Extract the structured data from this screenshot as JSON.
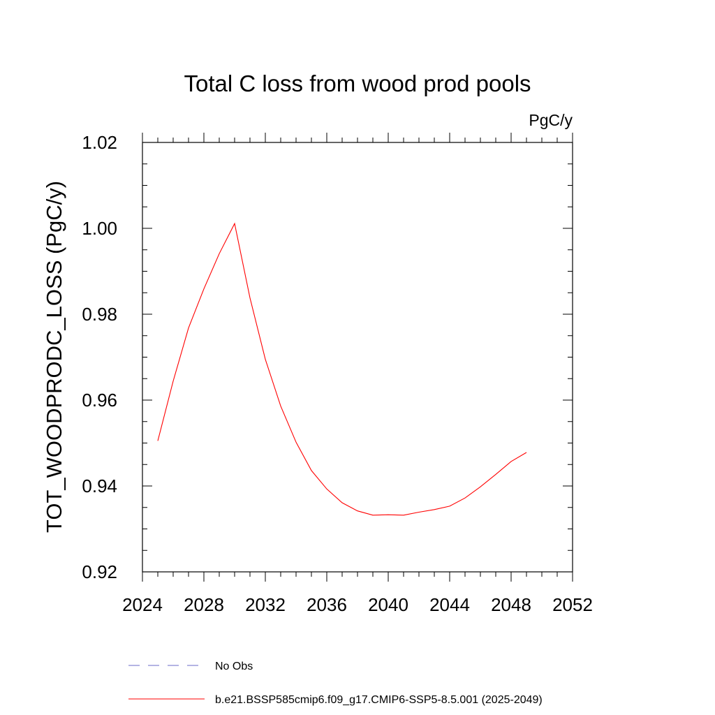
{
  "chart_data": {
    "type": "line",
    "title": "Total C loss from wood prod pools",
    "units_label": "PgC/y",
    "ylabel": "TOT_WOODPRODC_LOSS  (PgC/y)",
    "xlabel": "",
    "xlim": [
      2024,
      2052
    ],
    "ylim": [
      0.92,
      1.02
    ],
    "x_ticks": [
      "2024",
      "2028",
      "2032",
      "2036",
      "2040",
      "2044",
      "2048",
      "2052"
    ],
    "y_ticks": [
      "0.92",
      "0.94",
      "0.96",
      "0.98",
      "1.00",
      "1.02"
    ],
    "grid": false,
    "legend_position": "bottom",
    "series": [
      {
        "name": "No Obs",
        "color": "#6a6ac8",
        "dash": "dashed",
        "x": [],
        "y": []
      },
      {
        "name": "b.e21.BSSP585cmip6.f09_g17.CMIP6-SSP5-8.5.001 (2025-2049)",
        "color": "#ff0000",
        "dash": "solid",
        "x": [
          2025,
          2026,
          2027,
          2028,
          2029,
          2030,
          2031,
          2032,
          2033,
          2034,
          2035,
          2036,
          2037,
          2038,
          2039,
          2040,
          2041,
          2042,
          2043,
          2044,
          2045,
          2046,
          2047,
          2048,
          2049
        ],
        "y": [
          0.9505,
          0.9644,
          0.9768,
          0.9859,
          0.9941,
          1.0011,
          0.9838,
          0.9695,
          0.9586,
          0.9502,
          0.9436,
          0.9393,
          0.9361,
          0.9342,
          0.9332,
          0.9333,
          0.9332,
          0.9339,
          0.9345,
          0.9353,
          0.9372,
          0.9398,
          0.9427,
          0.9457,
          0.9478
        ]
      }
    ]
  }
}
